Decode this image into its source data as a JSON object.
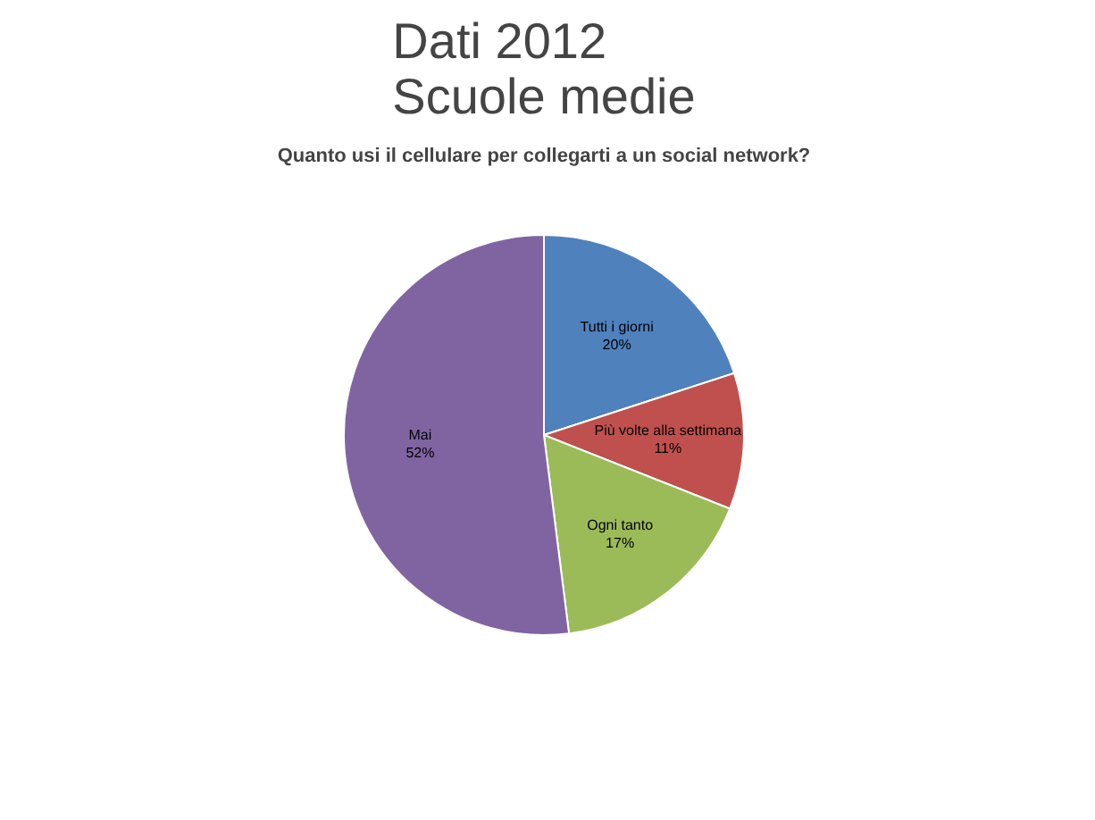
{
  "chart_data": {
    "type": "pie",
    "title": "Dati 2012\nScuole medie",
    "subtitle": "Quanto usi il cellulare per collegarti a un social network?",
    "categories": [
      "Tutti i giorni",
      "Più volte alla settimana",
      "Ogni tanto",
      "Mai"
    ],
    "values": [
      20,
      11,
      17,
      52
    ],
    "colors": [
      "#4f81bd",
      "#c0504d",
      "#9bbb59",
      "#8064a2"
    ],
    "value_labels": [
      "20%",
      "11%",
      "17%",
      "52%"
    ]
  }
}
